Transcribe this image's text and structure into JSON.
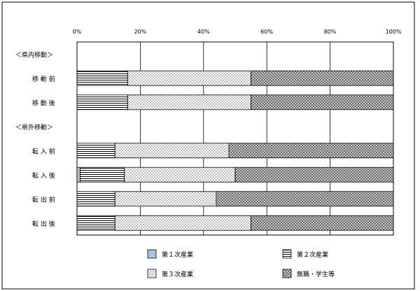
{
  "chart_data": {
    "type": "bar",
    "orientation": "horizontal",
    "stacked": true,
    "percent": true,
    "xlim": [
      0,
      100
    ],
    "x_ticks": [
      "0%",
      "20%",
      "40%",
      "60%",
      "80%",
      "100%"
    ],
    "grid": true,
    "legend_position": "bottom",
    "groups": [
      {
        "label": "＜県内移動＞",
        "rows": [
          {
            "label": "移 動 前",
            "values": [
              0,
              16,
              39,
              45
            ]
          },
          {
            "label": "移 動 後",
            "values": [
              0,
              16,
              39,
              45
            ]
          }
        ]
      },
      {
        "label": "＜県外移動＞",
        "rows": [
          {
            "label": "転 入 前",
            "values": [
              0,
              12,
              36,
              52
            ]
          },
          {
            "label": "転 入 後",
            "values": [
              1,
              14,
              35,
              50
            ]
          },
          {
            "label": "転 出 前",
            "values": [
              0,
              12,
              32,
              56
            ]
          },
          {
            "label": "転 出 後",
            "values": [
              0,
              12,
              43,
              45
            ]
          }
        ]
      }
    ],
    "series": [
      {
        "name": "第１次産業",
        "pattern": "solid",
        "color": "#a9c3e6"
      },
      {
        "name": "第２次産業",
        "pattern": "horizontal-lines",
        "color": "#000000"
      },
      {
        "name": "第３次産業",
        "pattern": "dots",
        "color": "#000000"
      },
      {
        "name": "無職・学生等",
        "pattern": "crosshatch",
        "color": "#000000"
      }
    ]
  }
}
